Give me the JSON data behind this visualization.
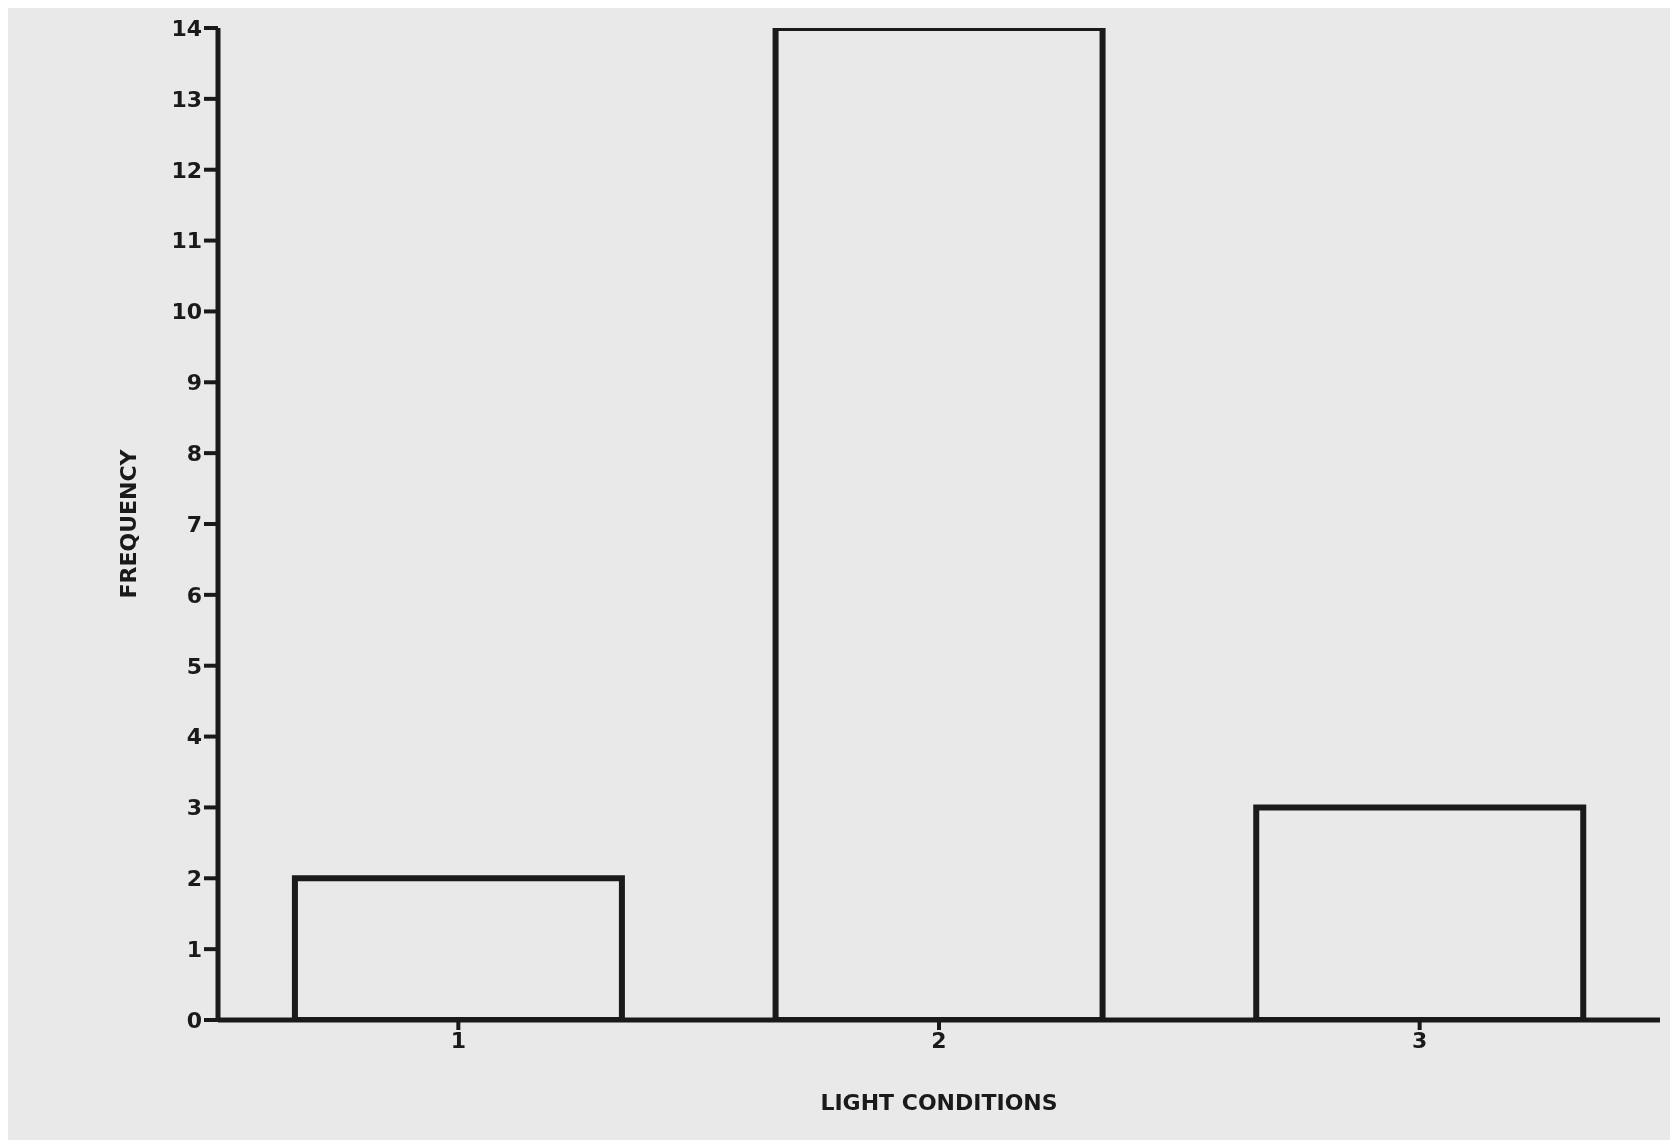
{
  "chart_data": {
    "type": "bar",
    "xlabel": "LIGHT CONDITIONS",
    "ylabel": "FREQUENCY",
    "categories": [
      "1",
      "2",
      "3"
    ],
    "values": [
      2,
      14,
      3
    ],
    "color": "#1a1a1a",
    "ylim": [
      0,
      14
    ],
    "yticks": [
      0,
      1,
      2,
      3,
      4,
      5,
      6,
      7,
      8,
      9,
      10,
      11,
      12,
      13,
      14
    ],
    "grid": false,
    "legend": false
  }
}
